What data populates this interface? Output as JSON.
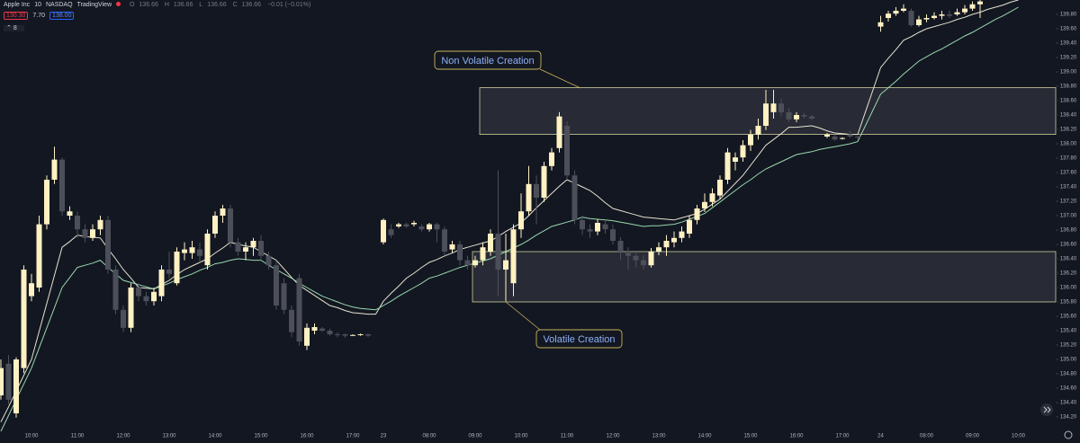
{
  "header": {
    "symbol": "Apple Inc",
    "interval": "10",
    "exchange": "NASDAQ",
    "source": "TradingView",
    "ohlc": [
      {
        "key": "O",
        "value": "136.66"
      },
      {
        "key": "H",
        "value": "136.66"
      },
      {
        "key": "L",
        "value": "136.66"
      },
      {
        "key": "C",
        "value": "136.66"
      }
    ],
    "change": "−0.01 (−0.01%)",
    "sell": "130.30",
    "spread": "7.70",
    "buy": "138.00",
    "indicators": "8"
  },
  "chart_data": {
    "type": "candlestick",
    "up_color": "#fff1c2",
    "down_color": "#4c4f59",
    "ylim": [
      134.0,
      140.0
    ],
    "yticks": [
      {
        "value": 134.2,
        "label": "134.20"
      },
      {
        "value": 134.4,
        "label": "134.40"
      },
      {
        "value": 134.6,
        "label": "134.60"
      },
      {
        "value": 134.8,
        "label": "134.80"
      },
      {
        "value": 135.0,
        "label": "135.00"
      },
      {
        "value": 135.2,
        "label": "135.20"
      },
      {
        "value": 135.4,
        "label": "135.40"
      },
      {
        "value": 135.6,
        "label": "135.60"
      },
      {
        "value": 135.8,
        "label": "135.80"
      },
      {
        "value": 136.0,
        "label": "136.00"
      },
      {
        "value": 136.2,
        "label": "136.20"
      },
      {
        "value": 136.4,
        "label": "136.40"
      },
      {
        "value": 136.6,
        "label": "136.60"
      },
      {
        "value": 136.8,
        "label": "136.80"
      },
      {
        "value": 137.0,
        "label": "137.00"
      },
      {
        "value": 137.2,
        "label": "137.20"
      },
      {
        "value": 137.4,
        "label": "137.40"
      },
      {
        "value": 137.6,
        "label": "137.60"
      },
      {
        "value": 137.8,
        "label": "137.80"
      },
      {
        "value": 138.0,
        "label": "138.00"
      },
      {
        "value": 138.2,
        "label": "138.20"
      },
      {
        "value": 138.4,
        "label": "138.40"
      },
      {
        "value": 138.6,
        "label": "138.60"
      },
      {
        "value": 138.8,
        "label": "138.80"
      },
      {
        "value": 139.0,
        "label": "139.00"
      },
      {
        "value": 139.2,
        "label": "139.20"
      },
      {
        "value": 139.4,
        "label": "139.40"
      },
      {
        "value": 139.6,
        "label": "139.60"
      },
      {
        "value": 139.8,
        "label": "139.80"
      }
    ],
    "categories": [
      null,
      null,
      null,
      null,
      "10:00",
      null,
      null,
      null,
      null,
      null,
      "11:00",
      null,
      null,
      null,
      null,
      null,
      "12:00",
      null,
      null,
      null,
      null,
      null,
      "13:00",
      null,
      null,
      null,
      null,
      null,
      "14:00",
      null,
      null,
      null,
      null,
      null,
      "15:00",
      null,
      null,
      null,
      null,
      null,
      "16:00",
      null,
      null,
      null,
      null,
      null,
      "17:00",
      null,
      null,
      null,
      "23",
      null,
      null,
      null,
      null,
      null,
      "08:00",
      null,
      null,
      null,
      null,
      null,
      "09:00",
      null,
      null,
      null,
      null,
      null,
      "10:00",
      null,
      null,
      null,
      null,
      null,
      "11:00",
      null,
      null,
      null,
      null,
      null,
      "12:00",
      null,
      null,
      null,
      null,
      null,
      "13:00",
      null,
      null,
      null,
      null,
      null,
      "14:00",
      null,
      null,
      null,
      null,
      null,
      "15:00",
      null,
      null,
      null,
      null,
      null,
      "16:00",
      null,
      null,
      null,
      null,
      null,
      "17:00",
      null,
      null,
      null,
      null,
      "24",
      null,
      null,
      null,
      null,
      null,
      "08:00",
      null,
      null,
      null,
      null,
      null,
      "09:00",
      null,
      null,
      null,
      null,
      null,
      "10:00"
    ],
    "open": [
      134.5,
      134.94,
      134.25,
      134.88,
      135.88,
      136.0,
      136.88,
      137.5,
      137.78,
      137.0,
      137.0,
      136.81,
      136.69,
      136.81,
      136.94,
      136.25,
      135.69,
      135.44,
      136.0,
      135.88,
      135.81,
      135.88,
      136.25,
      136.06,
      136.48,
      136.48,
      136.53,
      136.31,
      136.75,
      137.0,
      137.1,
      136.63,
      136.5,
      136.56,
      136.65,
      136.44,
      136.31,
      136.06,
      135.69,
      136.13,
      135.19,
      135.4,
      135.43,
      135.4,
      135.35,
      135.35,
      135.34,
      135.34,
      135.35,
      null,
      136.63,
      136.81,
      136.85,
      136.88,
      136.88,
      136.85,
      136.81,
      136.88,
      136.81,
      136.53,
      136.6,
      136.38,
      136.31,
      136.38,
      136.5,
      136.75,
      136.25,
      136.06,
      136.81,
      137.06,
      137.44,
      137.25,
      137.69,
      137.94,
      138.25,
      137.56,
      136.94,
      136.81,
      136.78,
      136.88,
      136.81,
      136.65,
      136.5,
      136.44,
      136.38,
      136.31,
      136.5,
      136.56,
      136.63,
      136.69,
      136.75,
      136.94,
      137.1,
      137.19,
      137.28,
      137.5,
      137.75,
      137.81,
      137.98,
      138.13,
      138.25,
      138.44,
      138.56,
      138.44,
      138.34,
      138.4,
      138.38,
      null,
      138.1,
      138.1,
      138.08,
      138.13,
      138.1,
      null,
      null,
      139.63,
      139.75,
      139.81,
      139.85,
      139.85,
      139.65,
      139.73,
      139.75,
      139.78,
      139.8,
      139.8,
      139.83,
      139.88,
      139.94,
      null,
      null,
      null,
      null,
      null
    ],
    "high": [
      135.0,
      135.06,
      135.03,
      136.31,
      136.19,
      137.0,
      137.56,
      137.96,
      137.81,
      137.13,
      137.06,
      136.88,
      136.88,
      137.0,
      137.0,
      136.31,
      135.75,
      136.06,
      136.06,
      135.94,
      136.0,
      136.31,
      136.5,
      136.56,
      136.63,
      136.65,
      136.63,
      136.81,
      137.06,
      137.15,
      137.15,
      136.69,
      136.63,
      136.69,
      136.73,
      136.5,
      136.38,
      136.13,
      135.75,
      136.19,
      135.5,
      135.5,
      135.45,
      135.43,
      135.38,
      135.36,
      135.35,
      135.36,
      135.36,
      null,
      136.96,
      136.88,
      136.9,
      136.9,
      136.93,
      136.88,
      136.9,
      136.9,
      136.85,
      136.65,
      136.65,
      136.44,
      136.44,
      136.63,
      136.81,
      137.63,
      136.75,
      136.88,
      137.31,
      137.69,
      137.56,
      137.75,
      137.94,
      138.44,
      138.31,
      137.63,
      137.0,
      136.88,
      136.95,
      136.94,
      136.88,
      136.7,
      136.56,
      136.5,
      136.45,
      136.55,
      136.63,
      136.73,
      136.78,
      136.85,
      137.0,
      137.15,
      137.31,
      137.38,
      137.56,
      137.94,
      137.88,
      138.05,
      138.19,
      138.35,
      138.75,
      138.75,
      138.63,
      138.5,
      138.44,
      138.43,
      138.4,
      null,
      138.15,
      138.13,
      138.09,
      138.18,
      138.11,
      null,
      null,
      139.78,
      139.85,
      139.9,
      139.94,
      139.88,
      139.78,
      139.8,
      139.83,
      139.85,
      139.85,
      139.88,
      139.93,
      139.98,
      140.0,
      null,
      null,
      null,
      null,
      null
    ],
    "low": [
      134.44,
      134.38,
      134.19,
      134.81,
      135.81,
      135.94,
      136.81,
      137.44,
      137.0,
      136.94,
      136.69,
      136.63,
      136.65,
      136.73,
      136.19,
      135.63,
      135.38,
      135.38,
      135.81,
      135.75,
      135.75,
      135.81,
      136.13,
      136.03,
      136.38,
      136.4,
      136.35,
      136.25,
      136.69,
      136.9,
      136.56,
      136.44,
      136.38,
      136.44,
      136.38,
      136.25,
      135.69,
      135.63,
      135.31,
      135.19,
      135.13,
      135.35,
      135.38,
      135.33,
      135.31,
      135.3,
      135.33,
      135.33,
      135.31,
      null,
      136.6,
      136.69,
      136.83,
      136.83,
      136.85,
      136.78,
      136.78,
      136.63,
      136.44,
      136.48,
      136.31,
      136.25,
      136.28,
      136.31,
      136.44,
      135.88,
      135.81,
      135.88,
      136.69,
      137.0,
      136.88,
      137.19,
      137.63,
      137.88,
      137.5,
      136.88,
      136.73,
      136.69,
      136.73,
      136.75,
      136.6,
      136.38,
      136.25,
      136.28,
      136.25,
      136.28,
      136.45,
      136.44,
      136.56,
      136.63,
      136.69,
      136.88,
      137.05,
      137.13,
      137.23,
      137.44,
      137.63,
      137.75,
      137.9,
      138.06,
      138.19,
      138.35,
      138.38,
      138.3,
      138.3,
      138.35,
      138.33,
      null,
      138.08,
      138.04,
      138.06,
      138.08,
      138.06,
      null,
      null,
      139.56,
      139.7,
      139.78,
      139.83,
      139.63,
      139.63,
      139.69,
      139.73,
      139.73,
      139.75,
      139.78,
      139.8,
      139.85,
      139.75,
      null,
      null,
      null,
      null,
      null
    ],
    "close": [
      134.88,
      134.44,
      135.0,
      136.25,
      136.06,
      136.88,
      137.5,
      137.78,
      137.06,
      137.06,
      136.81,
      136.69,
      136.81,
      136.94,
      136.25,
      135.69,
      135.44,
      136.0,
      135.88,
      135.81,
      135.94,
      136.25,
      136.19,
      136.5,
      136.53,
      136.56,
      136.44,
      136.75,
      137.0,
      137.1,
      136.63,
      136.5,
      136.56,
      136.65,
      136.44,
      136.31,
      135.75,
      135.69,
      135.38,
      135.25,
      135.44,
      135.45,
      135.4,
      135.35,
      135.34,
      135.33,
      135.34,
      135.35,
      135.33,
      null,
      136.94,
      136.73,
      136.88,
      136.85,
      136.9,
      136.81,
      136.88,
      136.81,
      136.5,
      136.6,
      136.38,
      136.31,
      136.38,
      136.56,
      136.75,
      136.25,
      136.38,
      136.81,
      137.06,
      137.44,
      137.25,
      137.69,
      137.88,
      138.38,
      137.56,
      136.94,
      136.81,
      136.78,
      136.9,
      136.81,
      136.65,
      136.5,
      136.44,
      136.38,
      136.31,
      136.5,
      136.56,
      136.65,
      136.69,
      136.78,
      136.94,
      137.1,
      137.19,
      137.31,
      137.5,
      137.88,
      137.81,
      137.98,
      138.13,
      138.25,
      138.56,
      138.56,
      138.44,
      138.34,
      138.4,
      138.38,
      138.35,
      null,
      138.13,
      138.06,
      138.08,
      138.1,
      138.09,
      null,
      null,
      139.69,
      139.81,
      139.85,
      139.88,
      139.65,
      139.73,
      139.75,
      139.78,
      139.8,
      139.78,
      139.83,
      139.88,
      139.94,
      139.98,
      null,
      null,
      null,
      null,
      null
    ],
    "overlays": [
      {
        "color": "#e6e3cf",
        "values": [
          134.13,
          134.34,
          134.56,
          134.78,
          135.0,
          135.39,
          135.78,
          136.17,
          136.56,
          136.64,
          136.73,
          136.71,
          136.7,
          136.69,
          136.54,
          136.4,
          136.25,
          136.13,
          136.0,
          135.99,
          135.98,
          136.04,
          136.1,
          136.18,
          136.25,
          136.3,
          136.35,
          136.4,
          136.48,
          136.55,
          136.63,
          136.6,
          136.58,
          136.56,
          136.5,
          136.44,
          136.38,
          136.26,
          136.14,
          136.03,
          135.96,
          135.89,
          135.82,
          135.75,
          135.72,
          135.68,
          135.65,
          135.64,
          135.63,
          135.63,
          135.81,
          135.92,
          136.02,
          136.13,
          136.2,
          136.28,
          136.35,
          136.39,
          136.44,
          136.48,
          136.53,
          136.56,
          136.59,
          136.62,
          136.65,
          136.71,
          136.78,
          136.84,
          136.9,
          137.0,
          137.11,
          137.21,
          137.31,
          137.41,
          137.5,
          137.45,
          137.4,
          137.35,
          137.27,
          137.18,
          137.1,
          137.07,
          137.04,
          137.01,
          136.98,
          136.97,
          136.96,
          136.95,
          136.94,
          136.97,
          137.0,
          137.03,
          137.09,
          137.16,
          137.23,
          137.34,
          137.45,
          137.56,
          137.7,
          137.84,
          137.98,
          138.06,
          138.14,
          138.23,
          138.23,
          138.24,
          138.25,
          138.22,
          138.18,
          138.15,
          138.14,
          138.13,
          138.13,
          138.44,
          138.75,
          139.06,
          139.19,
          139.31,
          139.44,
          139.49,
          139.55,
          139.6,
          139.63,
          139.66,
          139.69,
          139.73,
          139.76,
          139.8,
          139.83,
          139.87,
          139.9,
          139.93,
          139.97,
          140.0
        ]
      },
      {
        "color": "#98d8ae",
        "values": [
          134.0,
          134.22,
          134.44,
          134.66,
          134.88,
          135.16,
          135.44,
          135.72,
          136.0,
          136.14,
          136.28,
          136.31,
          136.34,
          136.38,
          136.28,
          136.19,
          136.1,
          136.07,
          136.04,
          136.01,
          135.98,
          136.02,
          136.06,
          136.11,
          136.15,
          136.19,
          136.24,
          136.28,
          136.33,
          136.35,
          136.38,
          136.4,
          136.39,
          136.38,
          136.38,
          136.31,
          136.25,
          136.19,
          136.13,
          136.06,
          136.0,
          135.94,
          135.88,
          135.84,
          135.8,
          135.76,
          135.73,
          135.71,
          135.7,
          135.69,
          135.75,
          135.81,
          135.88,
          135.94,
          136.0,
          136.06,
          136.13,
          136.16,
          136.2,
          136.24,
          136.28,
          136.31,
          136.34,
          136.37,
          136.4,
          136.45,
          136.5,
          136.55,
          136.6,
          136.66,
          136.73,
          136.79,
          136.85,
          136.88,
          136.91,
          136.94,
          136.98,
          136.96,
          136.95,
          136.94,
          136.93,
          136.91,
          136.89,
          136.87,
          136.85,
          136.86,
          136.86,
          136.87,
          136.88,
          136.91,
          136.95,
          136.99,
          137.03,
          137.11,
          137.19,
          137.27,
          137.35,
          137.43,
          137.5,
          137.58,
          137.65,
          137.7,
          137.75,
          137.8,
          137.85,
          137.87,
          137.89,
          137.92,
          137.94,
          137.96,
          137.98,
          138.0,
          138.03,
          138.25,
          138.47,
          138.69,
          138.78,
          138.87,
          138.97,
          139.06,
          139.15,
          139.21,
          139.27,
          139.32,
          139.38,
          139.44,
          139.5,
          139.55,
          139.61,
          139.67,
          139.73,
          139.78,
          139.84,
          139.9
        ]
      }
    ],
    "zones": [
      {
        "label": "Non Volatile Creation",
        "top": 138.78,
        "bottom": 138.13
      },
      {
        "label": "Volatile Creation",
        "top": 136.5,
        "bottom": 135.8
      }
    ]
  }
}
